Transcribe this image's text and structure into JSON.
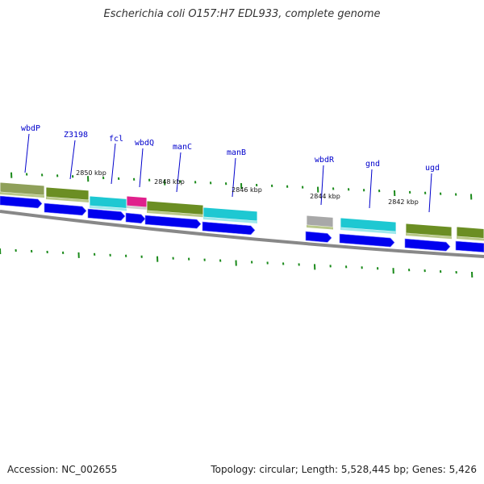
{
  "title": "Escherichia coli O157:H7 EDL933, complete genome",
  "accession": "Accession: NC_002655",
  "summary": "Topology: circular; Length: 5,528,445 bp; Genes: 5,426",
  "colors": {
    "forward_cds": "#6b8e23",
    "forward_cds_alt": "#8fa05a",
    "cyan_feature": "#1ec8d2",
    "magenta_feature": "#e0208c",
    "grey_feature": "#a8a8a8",
    "reverse_cds": "#0000ee",
    "backbone": "#888888",
    "tick": "#1a8a1a",
    "label": "#0000cc"
  },
  "gene_labels": [
    "wbdP",
    "Z3198",
    "fcl",
    "wbdQ",
    "manC",
    "manB",
    "wbdR",
    "gnd",
    "ugd"
  ],
  "kbp_labels": [
    "2850 kbp",
    "2848 kbp",
    "2846 kbp",
    "2844 kbp",
    "2842 kbp"
  ]
}
